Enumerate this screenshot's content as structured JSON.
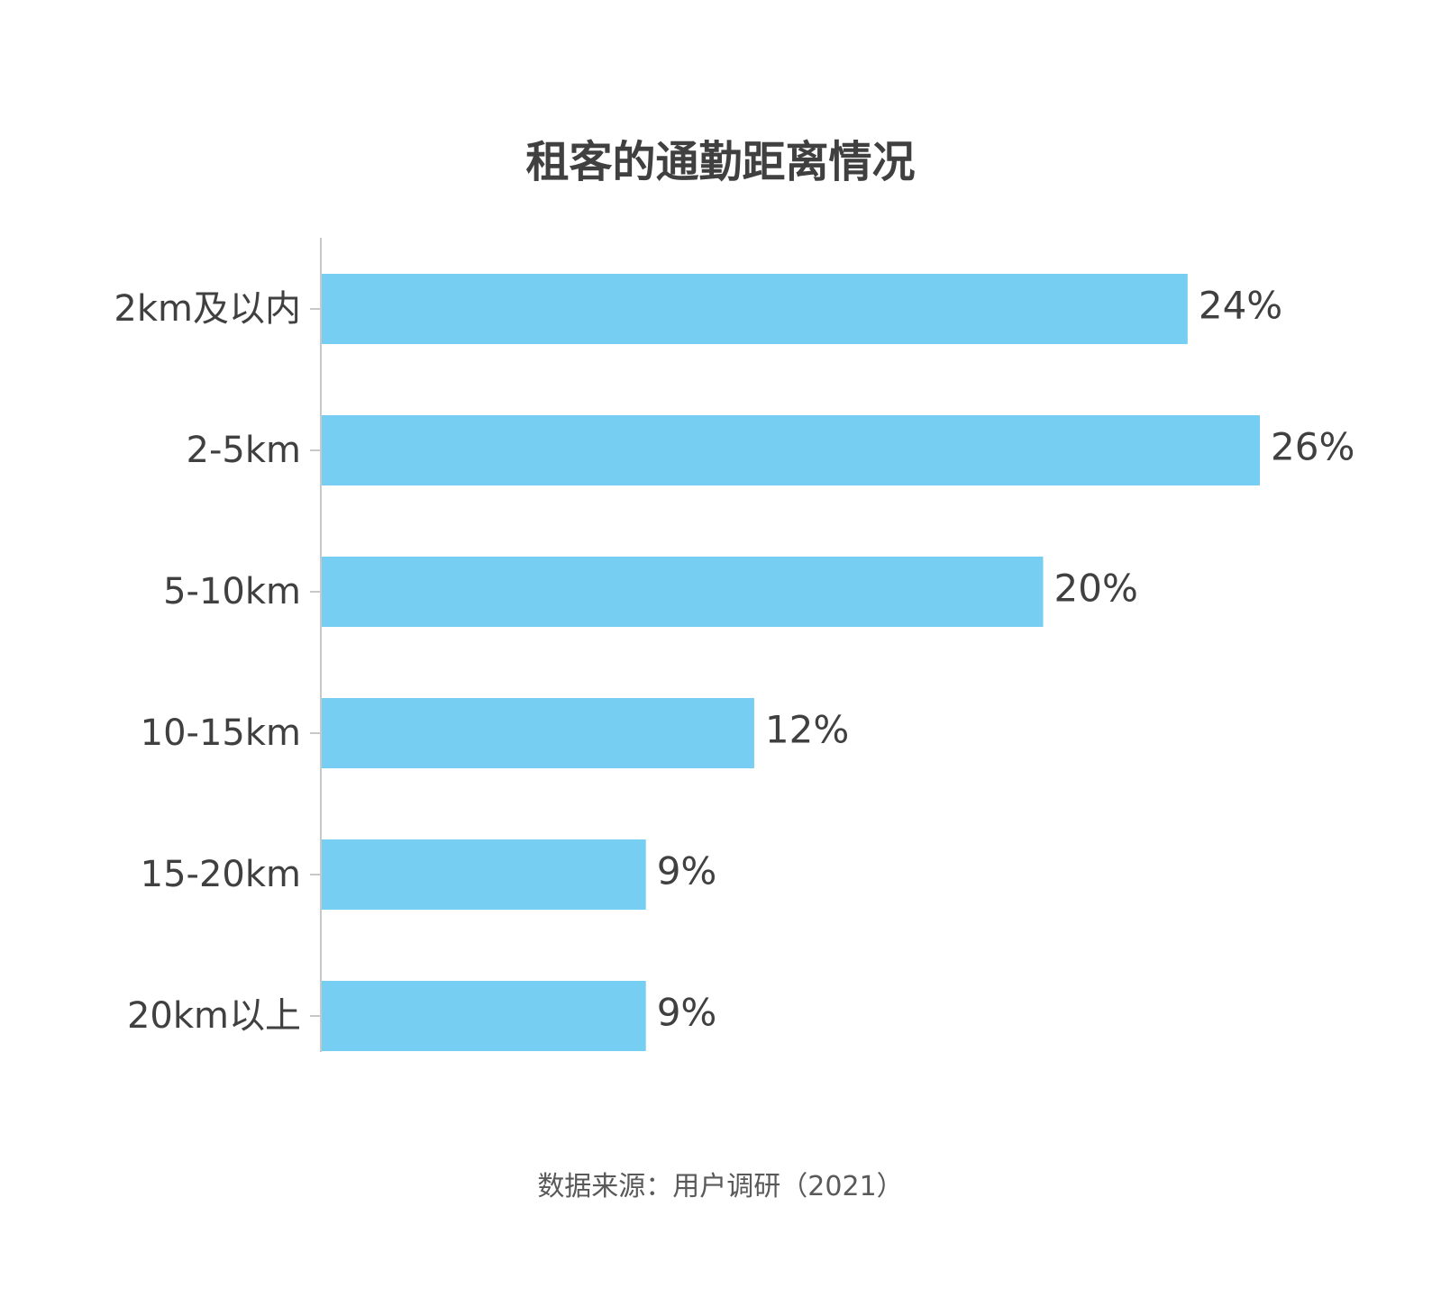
{
  "chart_data": {
    "type": "bar",
    "orientation": "horizontal",
    "title": "租客的通勤距离情况",
    "categories": [
      "2km及以内",
      "2-5km",
      "5-10km",
      "10-15km",
      "15-20km",
      "20km以上"
    ],
    "values": [
      24,
      26,
      20,
      12,
      9,
      9
    ],
    "value_labels": [
      "24%",
      "26%",
      "20%",
      "12%",
      "9%",
      "9%"
    ],
    "value_unit": "%",
    "xlim": [
      0,
      26
    ],
    "grid": false,
    "legend": "none",
    "source": "数据来源：用户调研（2021）"
  },
  "colors": {
    "bar": "#76CFF2",
    "axis": "#C8C8C8",
    "label_text": "#404040"
  }
}
